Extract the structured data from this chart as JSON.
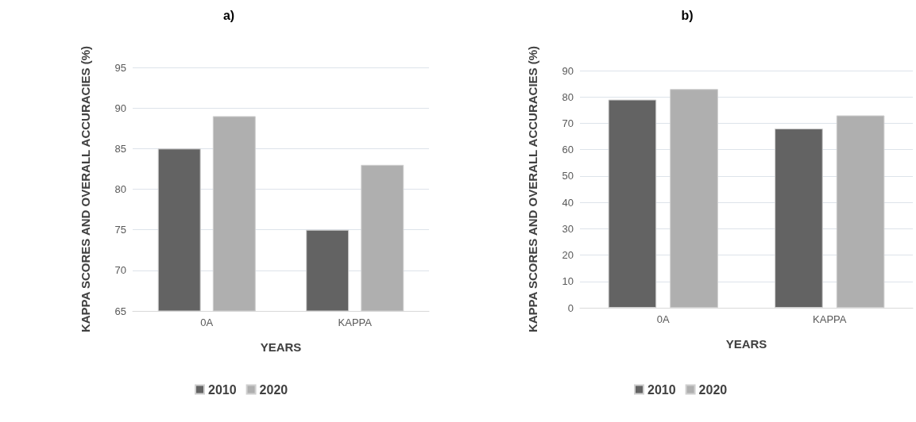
{
  "chart_data": [
    {
      "type": "bar",
      "title": "a)",
      "xlabel": "YEARS",
      "ylabel": "KAPPA SCORES AND OVERALL ACCURACIES (%)",
      "categories": [
        "0A",
        "KAPPA"
      ],
      "series": [
        {
          "name": "2010",
          "color": "#636363",
          "values": [
            85,
            75
          ]
        },
        {
          "name": "2020",
          "color": "#afafaf",
          "values": [
            89,
            83
          ]
        }
      ],
      "ylim": [
        65,
        95
      ],
      "yticks": [
        65,
        70,
        75,
        80,
        85,
        90,
        95
      ],
      "grid": "y",
      "legend": "bottom"
    },
    {
      "type": "bar",
      "title": "b)",
      "xlabel": "YEARS",
      "ylabel": "KAPPA SCORES AND OVERALL ACCURACIES (%)",
      "categories": [
        "0A",
        "KAPPA"
      ],
      "series": [
        {
          "name": "2010",
          "color": "#636363",
          "values": [
            79,
            68
          ]
        },
        {
          "name": "2020",
          "color": "#afafaf",
          "values": [
            83,
            73
          ]
        }
      ],
      "ylim": [
        0,
        90
      ],
      "yticks": [
        0,
        10,
        20,
        30,
        40,
        50,
        60,
        70,
        80,
        90
      ],
      "grid": "y",
      "legend": "bottom"
    }
  ]
}
